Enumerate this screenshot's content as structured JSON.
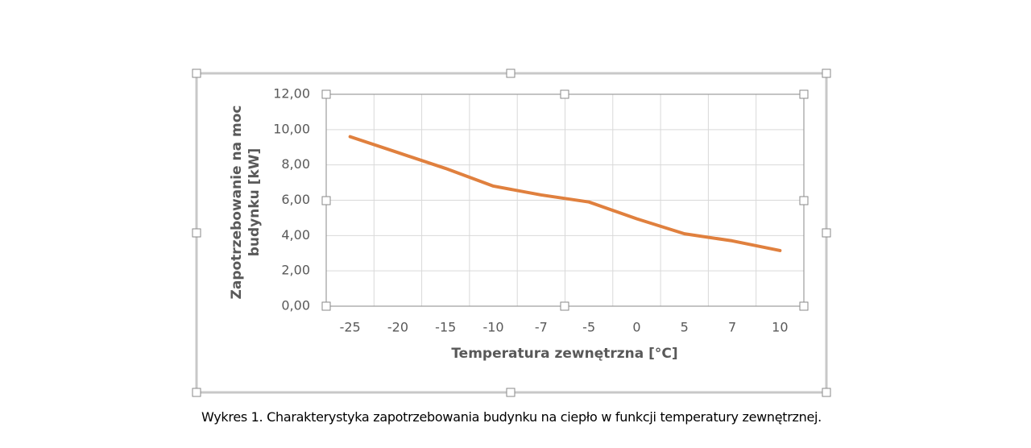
{
  "chart_data": {
    "type": "line",
    "categories": [
      "-25",
      "-20",
      "-15",
      "-10",
      "-7",
      "-5",
      "0",
      "5",
      "7",
      "10"
    ],
    "series": [
      {
        "color": "#e0803e",
        "values": [
          9.6,
          8.7,
          7.8,
          6.8,
          6.3,
          5.9,
          4.95,
          4.1,
          3.7,
          3.15
        ]
      }
    ],
    "ylim": [
      0,
      12
    ],
    "yticks": [
      {
        "value": 0,
        "label": "0,00"
      },
      {
        "value": 2,
        "label": "2,00"
      },
      {
        "value": 4,
        "label": "4,00"
      },
      {
        "value": 6,
        "label": "6,00"
      },
      {
        "value": 8,
        "label": "8,00"
      },
      {
        "value": 10,
        "label": "10,00"
      },
      {
        "value": 12,
        "label": "12,00"
      }
    ],
    "grid": true,
    "xlabel": "Temperatura zewnętrzna [°C]",
    "ylabel": "Zapotrzebowanie na moc budynku [kW]"
  },
  "caption": "Wykres 1. Charakterystyka zapotrzebowania budynku na ciepło w funkcji temperatury zewnętrznej."
}
